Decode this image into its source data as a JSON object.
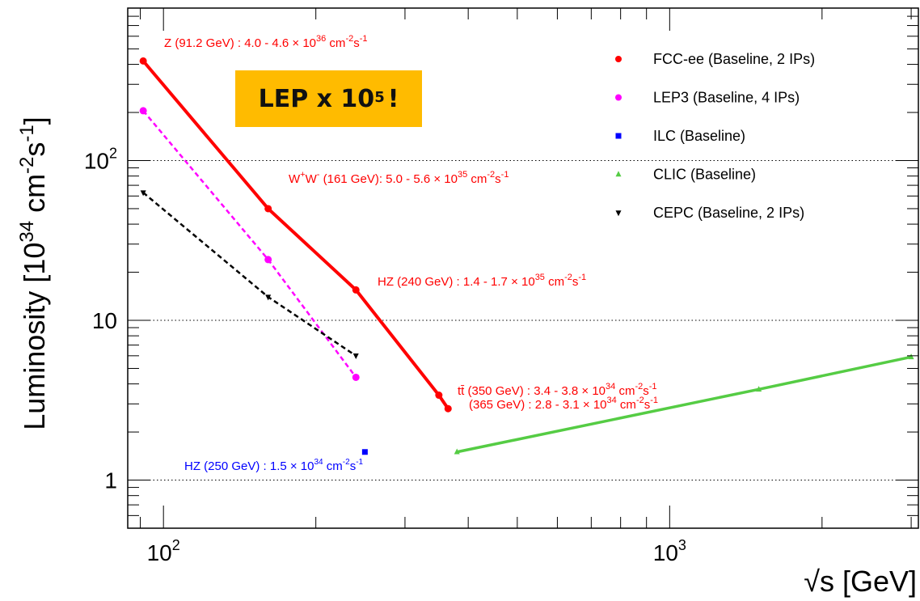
{
  "chart_data": {
    "type": "line",
    "xscale": "log",
    "yscale": "log",
    "xlim": [
      85,
      3100
    ],
    "ylim": [
      0.5,
      900
    ],
    "xlabel": "√s [GeV]",
    "ylabel": "Luminosity [10^34 cm^-2 s^-1]",
    "x_ticks": [
      {
        "value": 100,
        "base": "10",
        "exp": "2"
      },
      {
        "value": 1000,
        "base": "10",
        "exp": "3"
      }
    ],
    "y_ticks": [
      {
        "value": 1,
        "text": "1"
      },
      {
        "value": 10,
        "text": "10"
      },
      {
        "value": 100,
        "base": "10",
        "exp": "2"
      }
    ],
    "grid": {
      "y_major": true,
      "x": false
    },
    "legend_position": "top-right",
    "series": [
      {
        "name": "FCC-ee (Baseline, 2 IPs)",
        "color": "#ff0000",
        "marker": "circle",
        "dash": "solid",
        "x": [
          91.2,
          161,
          240,
          350,
          365
        ],
        "y": [
          420,
          50,
          15.5,
          3.4,
          2.8
        ]
      },
      {
        "name": "LEP3 (Baseline, 4 IPs)",
        "color": "#ff00ff",
        "marker": "circle",
        "dash": "dashed",
        "x": [
          91.2,
          161,
          240
        ],
        "y": [
          205,
          24,
          4.4
        ]
      },
      {
        "name": "ILC (Baseline)",
        "color": "#0000ff",
        "marker": "square",
        "dash": "none",
        "x": [
          250
        ],
        "y": [
          1.5
        ]
      },
      {
        "name": "CLIC (Baseline)",
        "color": "#55cc44",
        "marker": "triangle-up",
        "dash": "solid",
        "x": [
          380,
          1500,
          3000
        ],
        "y": [
          1.5,
          3.7,
          5.9
        ]
      },
      {
        "name": "CEPC (Baseline, 2 IPs)",
        "color": "#000000",
        "marker": "triangle-down",
        "dash": "dashed",
        "x": [
          91.2,
          161,
          240
        ],
        "y": [
          63,
          14,
          6
        ]
      }
    ],
    "annotations": [
      {
        "text": "Z (91.2 GeV) : 4.0 - 4.6 × 10^36 cm^-2s^-1",
        "color": "#ff0000"
      },
      {
        "text": "W+W- (161 GeV): 5.0 - 5.6 × 10^35 cm^-2s^-1",
        "color": "#ff0000"
      },
      {
        "text": "HZ (240 GeV) : 1.4 - 1.7 × 10^35 cm^-2s^-1",
        "color": "#ff0000"
      },
      {
        "text": "tt̄ (350 GeV) : 3.4 - 3.8 × 10^34 cm^-2s^-1",
        "color": "#ff0000"
      },
      {
        "text": "(365 GeV) : 2.8 - 3.1 × 10^34 cm^-2s^-1",
        "color": "#ff0000"
      },
      {
        "text": "HZ (250 GeV) : 1.5 × 10^34 cm^-2s^-1",
        "color": "#0000ff"
      }
    ],
    "badge": {
      "text": "LEP x 10",
      "exp": "5",
      "suffix": "!",
      "color": "#ffbb00"
    }
  }
}
